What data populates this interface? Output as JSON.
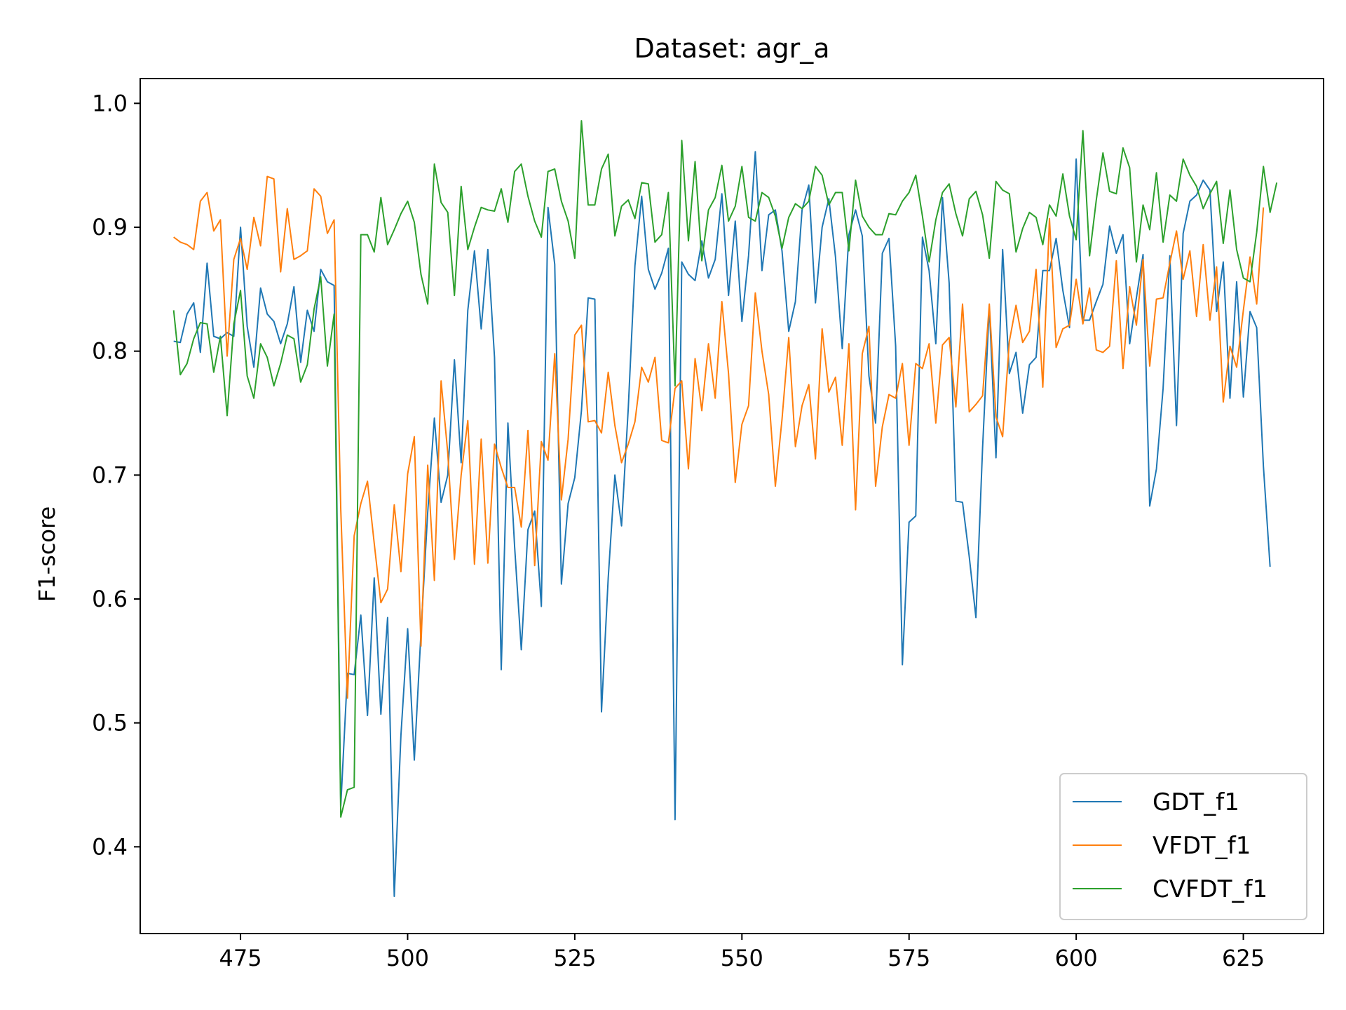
{
  "chart_data": {
    "type": "line",
    "title": "Dataset: agr_a",
    "xlabel": "",
    "ylabel": "F1-score",
    "xlim": [
      460,
      637
    ],
    "ylim": [
      0.33,
      1.02
    ],
    "xticks": [
      475,
      500,
      525,
      550,
      575,
      600,
      625
    ],
    "yticks": [
      0.4,
      0.5,
      0.6,
      0.7,
      0.8,
      0.9,
      1.0
    ],
    "ytick_labels": [
      "0.4",
      "0.5",
      "0.6",
      "0.7",
      "0.8",
      "0.9",
      "1.0"
    ],
    "legend_position": "lower-right",
    "grid": false,
    "x_start": 465,
    "x_step": 1,
    "series": [
      {
        "name": "GDT_f1",
        "color": "#1f77b4",
        "values": [
          0.808,
          0.807,
          0.83,
          0.839,
          0.799,
          0.871,
          0.812,
          0.81,
          0.815,
          0.812,
          0.9,
          0.82,
          0.787,
          0.851,
          0.83,
          0.824,
          0.806,
          0.822,
          0.852,
          0.791,
          0.833,
          0.816,
          0.866,
          0.856,
          0.853,
          0.433,
          0.54,
          0.539,
          0.587,
          0.506,
          0.617,
          0.507,
          0.585,
          0.36,
          0.49,
          0.576,
          0.47,
          0.573,
          0.67,
          0.746,
          0.678,
          0.7,
          0.793,
          0.71,
          0.833,
          0.881,
          0.818,
          0.882,
          0.795,
          0.543,
          0.742,
          0.642,
          0.559,
          0.656,
          0.671,
          0.594,
          0.916,
          0.87,
          0.612,
          0.677,
          0.698,
          0.752,
          0.843,
          0.842,
          0.509,
          0.617,
          0.7,
          0.659,
          0.754,
          0.869,
          0.925,
          0.866,
          0.85,
          0.863,
          0.883,
          0.422,
          0.872,
          0.862,
          0.857,
          0.889,
          0.859,
          0.874,
          0.927,
          0.845,
          0.905,
          0.824,
          0.877,
          0.961,
          0.865,
          0.91,
          0.914,
          0.881,
          0.816,
          0.84,
          0.914,
          0.934,
          0.839,
          0.9,
          0.923,
          0.876,
          0.802,
          0.894,
          0.914,
          0.893,
          0.78,
          0.742,
          0.879,
          0.891,
          0.804,
          0.547,
          0.662,
          0.667,
          0.892,
          0.865,
          0.806,
          0.924,
          0.855,
          0.679,
          0.678,
          0.634,
          0.585,
          0.722,
          0.836,
          0.714,
          0.882,
          0.782,
          0.799,
          0.75,
          0.789,
          0.795,
          0.865,
          0.865,
          0.891,
          0.849,
          0.819,
          0.955,
          0.825,
          0.825,
          0.84,
          0.854,
          0.901,
          0.879,
          0.894,
          0.806,
          0.843,
          0.878,
          0.675,
          0.705,
          0.77,
          0.877,
          0.74,
          0.895,
          0.921,
          0.926,
          0.938,
          0.93,
          0.832,
          0.872,
          0.762,
          0.856,
          0.763,
          0.832,
          0.819,
          0.707,
          0.626
        ]
      },
      {
        "name": "VFDT_f1",
        "color": "#ff7f0e",
        "values": [
          0.892,
          0.888,
          0.886,
          0.882,
          0.921,
          0.928,
          0.897,
          0.906,
          0.796,
          0.874,
          0.891,
          0.866,
          0.908,
          0.885,
          0.941,
          0.939,
          0.864,
          0.915,
          0.874,
          0.877,
          0.881,
          0.931,
          0.925,
          0.895,
          0.906,
          0.672,
          0.52,
          0.651,
          0.677,
          0.695,
          0.645,
          0.597,
          0.608,
          0.676,
          0.622,
          0.701,
          0.731,
          0.562,
          0.708,
          0.615,
          0.776,
          0.718,
          0.632,
          0.7,
          0.744,
          0.628,
          0.729,
          0.629,
          0.725,
          0.706,
          0.69,
          0.69,
          0.658,
          0.736,
          0.627,
          0.727,
          0.712,
          0.798,
          0.68,
          0.729,
          0.813,
          0.821,
          0.743,
          0.744,
          0.734,
          0.783,
          0.74,
          0.71,
          0.725,
          0.743,
          0.787,
          0.775,
          0.795,
          0.728,
          0.726,
          0.77,
          0.776,
          0.705,
          0.794,
          0.752,
          0.806,
          0.762,
          0.84,
          0.782,
          0.694,
          0.741,
          0.756,
          0.847,
          0.8,
          0.765,
          0.691,
          0.745,
          0.811,
          0.723,
          0.756,
          0.773,
          0.713,
          0.818,
          0.767,
          0.779,
          0.724,
          0.806,
          0.672,
          0.798,
          0.82,
          0.691,
          0.739,
          0.765,
          0.762,
          0.79,
          0.724,
          0.79,
          0.786,
          0.806,
          0.742,
          0.805,
          0.811,
          0.755,
          0.838,
          0.751,
          0.757,
          0.764,
          0.838,
          0.747,
          0.731,
          0.808,
          0.837,
          0.807,
          0.816,
          0.866,
          0.771,
          0.907,
          0.803,
          0.818,
          0.821,
          0.858,
          0.822,
          0.851,
          0.801,
          0.799,
          0.804,
          0.873,
          0.786,
          0.852,
          0.821,
          0.874,
          0.788,
          0.842,
          0.843,
          0.871,
          0.897,
          0.858,
          0.881,
          0.828,
          0.886,
          0.825,
          0.868,
          0.759,
          0.804,
          0.787,
          0.833,
          0.876,
          0.838,
          0.916
        ]
      },
      {
        "name": "CVFDT_f1",
        "color": "#2ca02c",
        "values": [
          0.833,
          0.781,
          0.79,
          0.81,
          0.823,
          0.822,
          0.783,
          0.812,
          0.748,
          0.822,
          0.849,
          0.78,
          0.762,
          0.806,
          0.795,
          0.772,
          0.79,
          0.813,
          0.81,
          0.775,
          0.789,
          0.834,
          0.86,
          0.788,
          0.83,
          0.424,
          0.446,
          0.448,
          0.894,
          0.894,
          0.88,
          0.924,
          0.886,
          0.898,
          0.911,
          0.921,
          0.904,
          0.862,
          0.838,
          0.951,
          0.92,
          0.912,
          0.845,
          0.933,
          0.882,
          0.9,
          0.916,
          0.914,
          0.913,
          0.931,
          0.904,
          0.945,
          0.951,
          0.925,
          0.905,
          0.892,
          0.945,
          0.947,
          0.921,
          0.905,
          0.875,
          0.986,
          0.918,
          0.918,
          0.947,
          0.959,
          0.893,
          0.917,
          0.922,
          0.907,
          0.936,
          0.935,
          0.888,
          0.894,
          0.928,
          0.772,
          0.97,
          0.889,
          0.953,
          0.873,
          0.914,
          0.924,
          0.95,
          0.905,
          0.917,
          0.949,
          0.908,
          0.905,
          0.928,
          0.924,
          0.909,
          0.883,
          0.908,
          0.919,
          0.915,
          0.921,
          0.949,
          0.942,
          0.918,
          0.928,
          0.928,
          0.881,
          0.938,
          0.909,
          0.9,
          0.894,
          0.894,
          0.911,
          0.91,
          0.921,
          0.928,
          0.942,
          0.909,
          0.872,
          0.906,
          0.928,
          0.935,
          0.911,
          0.893,
          0.923,
          0.929,
          0.91,
          0.875,
          0.937,
          0.93,
          0.927,
          0.88,
          0.899,
          0.912,
          0.908,
          0.886,
          0.918,
          0.909,
          0.943,
          0.909,
          0.89,
          0.978,
          0.877,
          0.922,
          0.96,
          0.929,
          0.927,
          0.964,
          0.948,
          0.872,
          0.918,
          0.898,
          0.944,
          0.888,
          0.926,
          0.921,
          0.955,
          0.942,
          0.933,
          0.915,
          0.927,
          0.937,
          0.887,
          0.93,
          0.882,
          0.859,
          0.856,
          0.896,
          0.949,
          0.912,
          0.936
        ]
      }
    ]
  }
}
